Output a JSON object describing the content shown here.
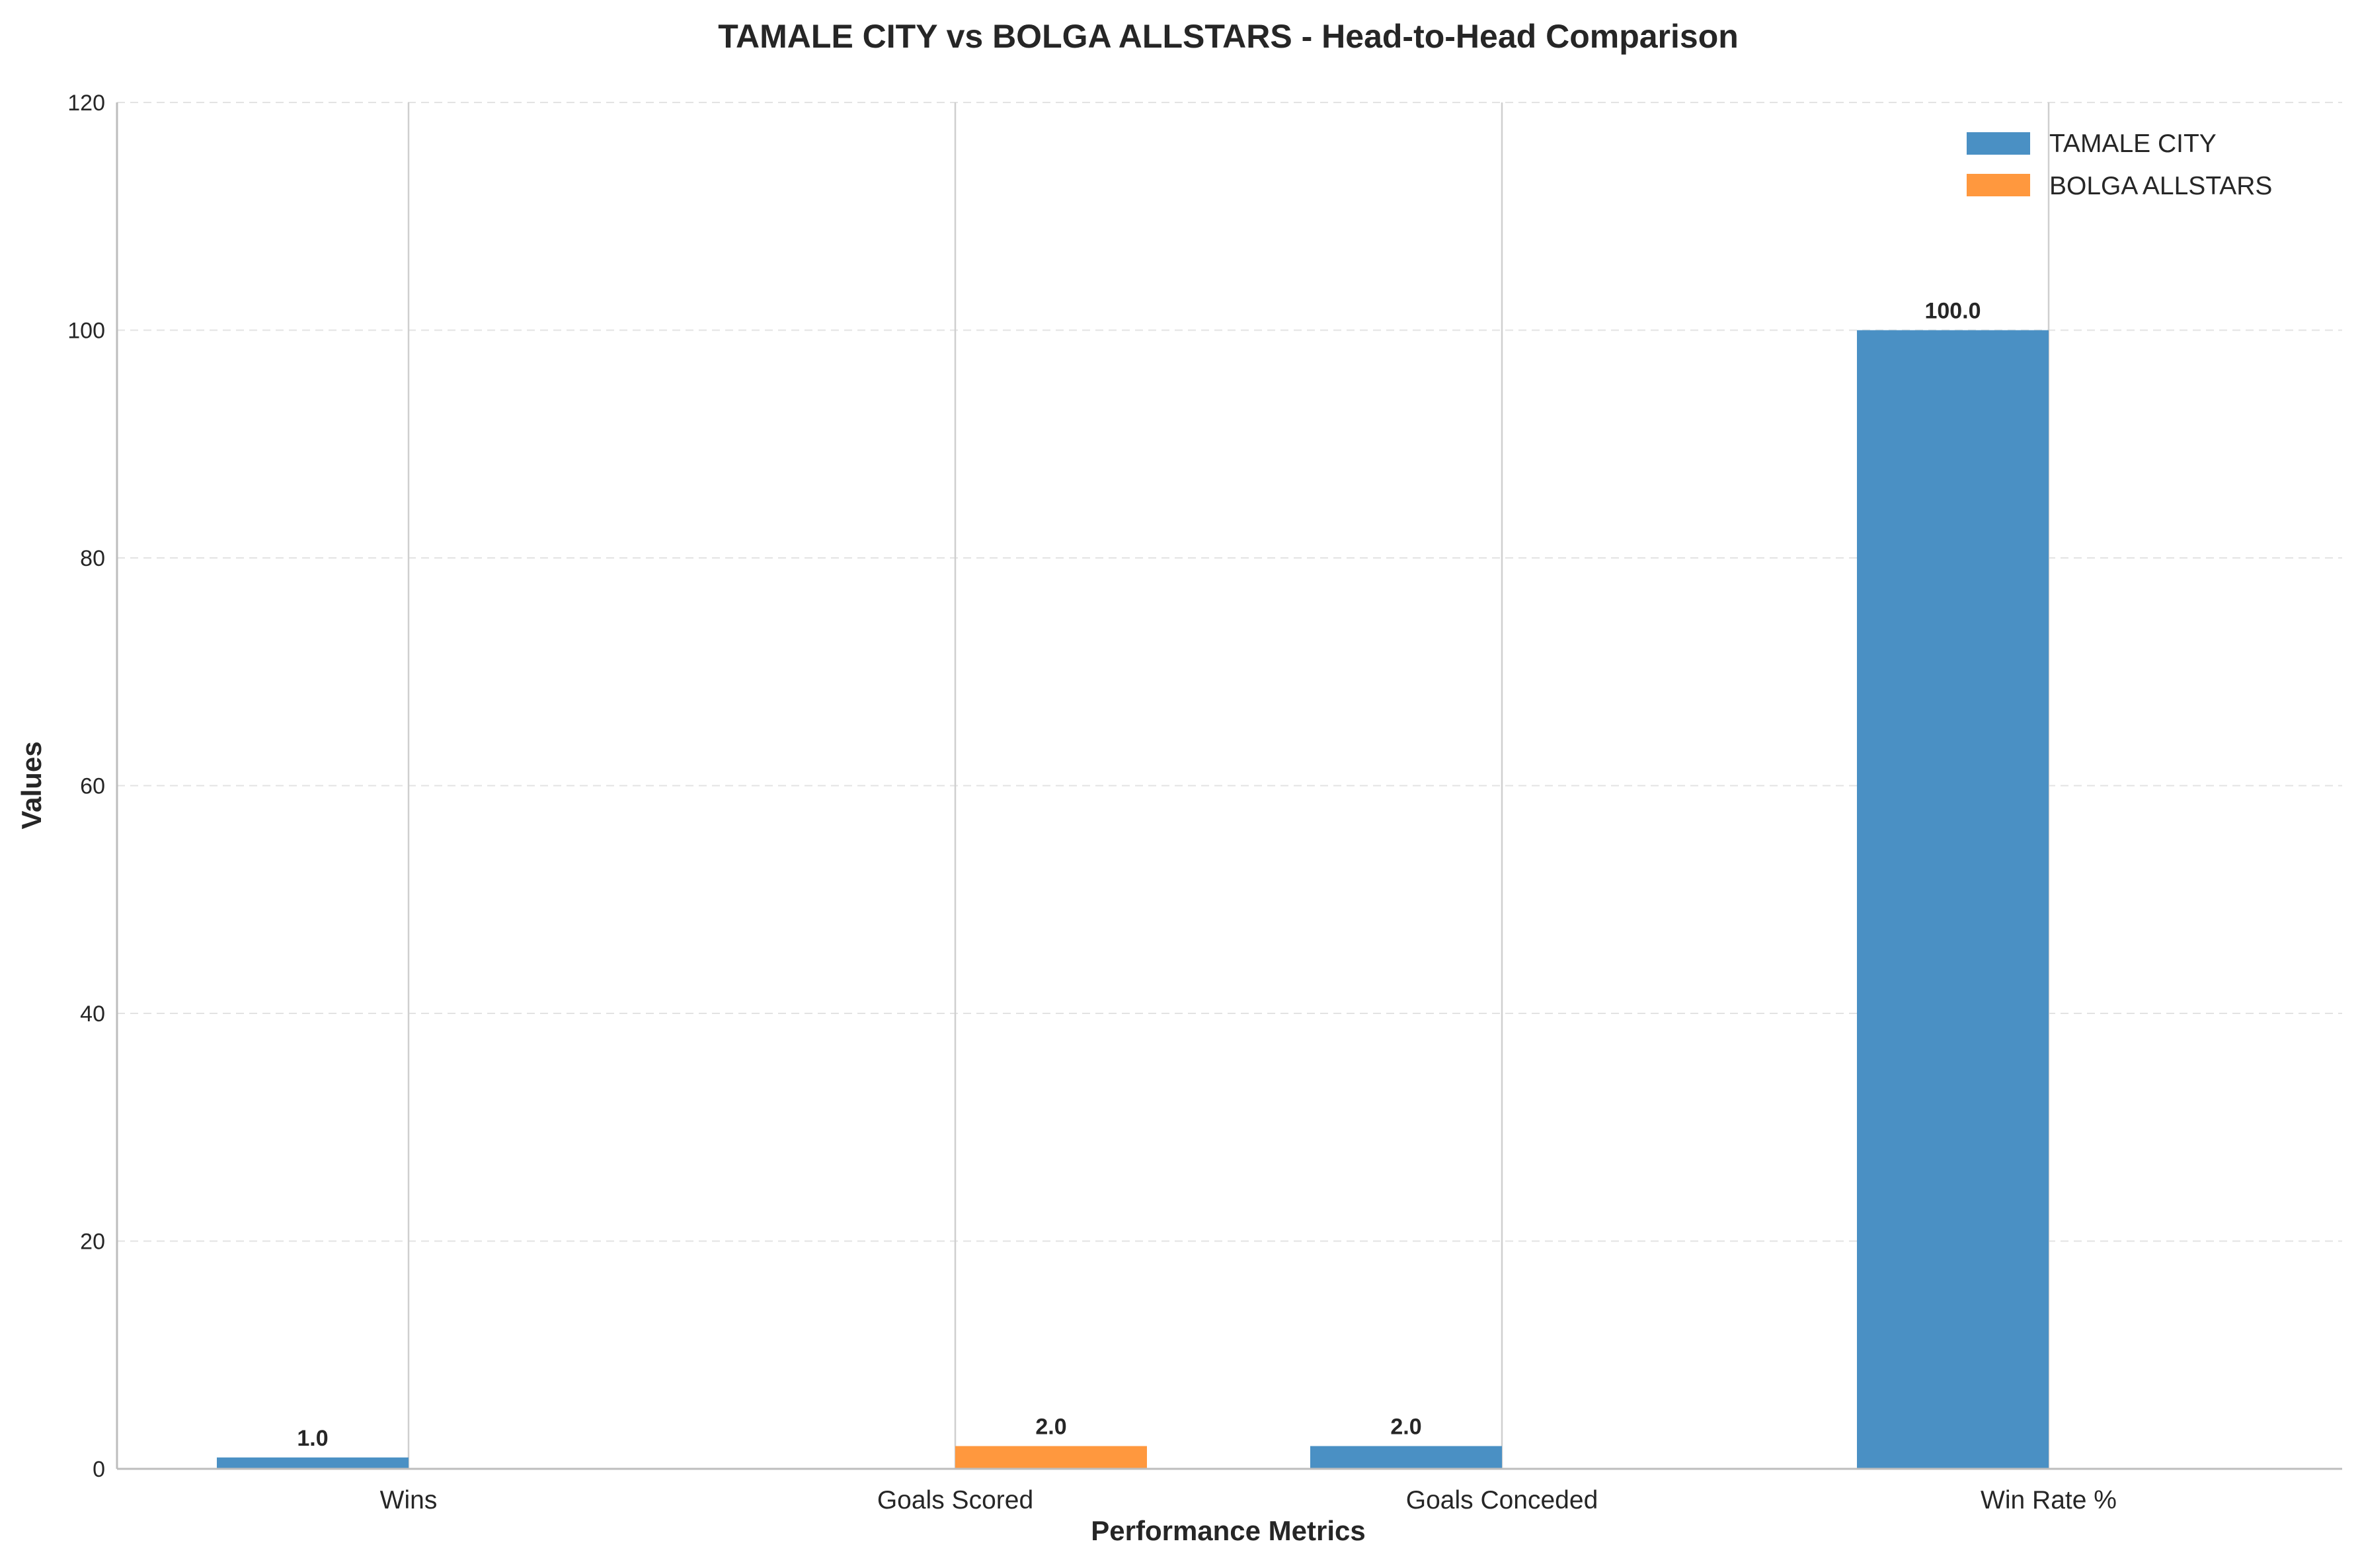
{
  "chart_data": {
    "type": "bar",
    "title": "TAMALE CITY vs BOLGA ALLSTARS - Head-to-Head Comparison",
    "xlabel": "Performance Metrics",
    "ylabel": "Values",
    "categories": [
      "Wins",
      "Goals Scored",
      "Goals Conceded",
      "Win Rate %"
    ],
    "series": [
      {
        "name": "TAMALE CITY",
        "color": "#1f77b4",
        "values": [
          1.0,
          0,
          2.0,
          100.0
        ]
      },
      {
        "name": "BOLGA ALLSTARS",
        "color": "#ff7f0e",
        "values": [
          0,
          2.0,
          0,
          0
        ]
      }
    ],
    "bar_labels": [
      {
        "text": "1.0",
        "series": 0,
        "category": 0
      },
      {
        "text": "2.0",
        "series": 1,
        "category": 1
      },
      {
        "text": "2.0",
        "series": 0,
        "category": 2
      },
      {
        "text": "100.0",
        "series": 0,
        "category": 3
      }
    ],
    "ylim": [
      0,
      120
    ],
    "yticks": [
      "0",
      "20",
      "40",
      "60",
      "80",
      "100",
      "120"
    ],
    "grid": "y dashed",
    "legend_position": "top-right"
  }
}
